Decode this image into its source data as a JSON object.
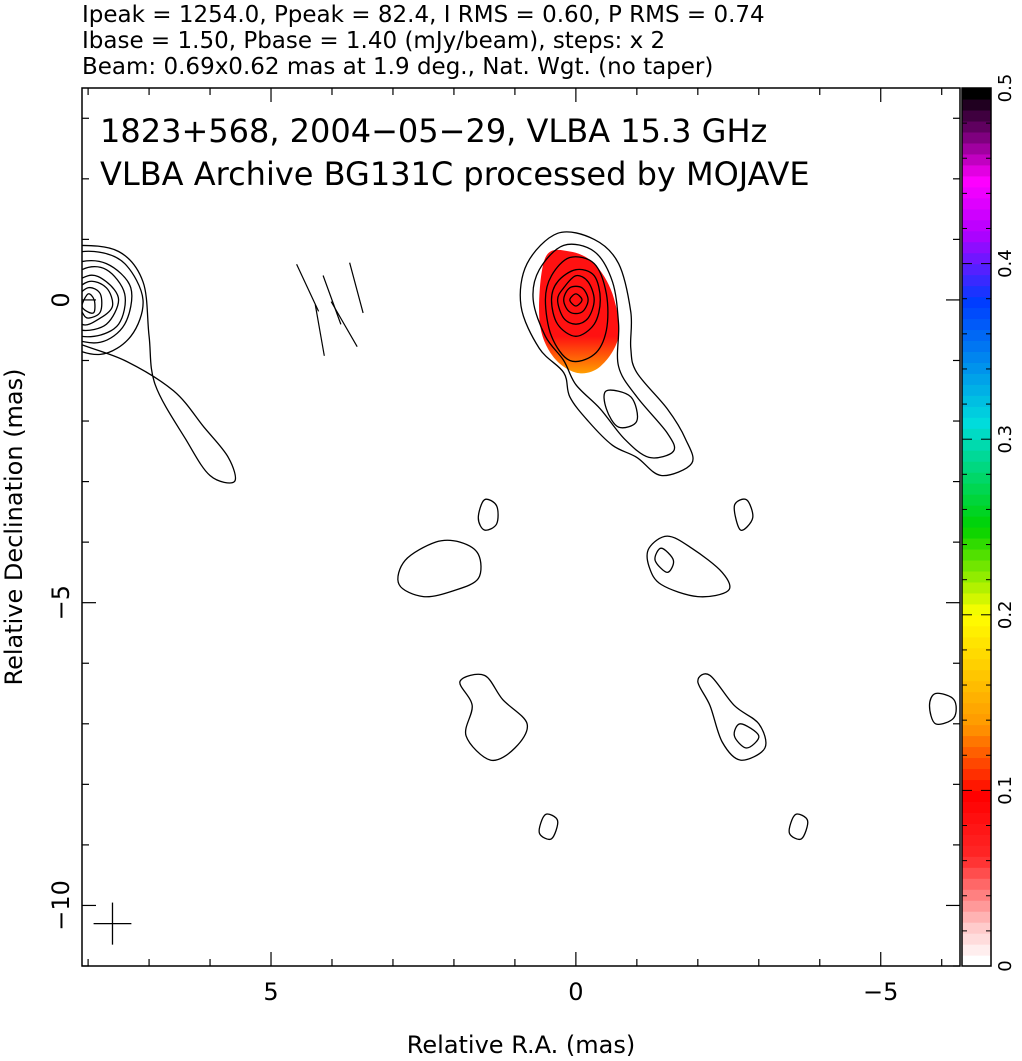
{
  "chart_data": {
    "type": "contour",
    "header": [
      "Ipeak = 1254.0, Ppeak = 82.4, I RMS = 0.60, P RMS = 0.74",
      "Ibase = 1.50, Pbase = 1.40 (mJy/beam), steps: x 2",
      "Beam: 0.69x0.62 mas at 1.9 deg., Nat. Wgt. (no taper)"
    ],
    "annotations": [
      "1823+568, 2004−05−29, VLBA 15.3 GHz",
      "VLBA Archive BG131C processed by MOJAVE"
    ],
    "xlabel": "Relative R.A. (mas)",
    "ylabel": "Relative Declination (mas)",
    "xlim": [
      8.1,
      -6.3
    ],
    "ylim": [
      -11.0,
      3.5
    ],
    "x_ticks": [
      {
        "value": 5,
        "label": "5"
      },
      {
        "value": 0,
        "label": "0"
      },
      {
        "value": -5,
        "label": "−5"
      }
    ],
    "y_ticks": [
      {
        "value": 0,
        "label": "0"
      },
      {
        "value": -5,
        "label": "−5"
      },
      {
        "value": -10,
        "label": "−10"
      }
    ],
    "colorbar": {
      "range": [
        0,
        0.5
      ],
      "ticks": [
        {
          "value": 0,
          "label": "0"
        },
        {
          "value": 0.1,
          "label": "0.1"
        },
        {
          "value": 0.2,
          "label": "0.2"
        },
        {
          "value": 0.3,
          "label": "0.3"
        },
        {
          "value": 0.4,
          "label": "0.4"
        },
        {
          "value": 0.5,
          "label": "0.5"
        }
      ]
    },
    "beam": {
      "major_mas": 0.69,
      "minor_mas": 0.62,
      "pa_deg": 1.9,
      "center": [
        7.6,
        -10.3
      ]
    },
    "panels": [
      {
        "name": "total-intensity-with-evpa",
        "offset_x": 4.0,
        "contours": [
          [
            [
              1.6,
              -3.0
            ],
            [
              1.7,
              -2.6
            ],
            [
              2.1,
              -2.1
            ],
            [
              2.6,
              -1.5
            ],
            [
              3.4,
              -1.0
            ],
            [
              4.4,
              -0.6
            ],
            [
              5.0,
              0.0
            ],
            [
              4.8,
              0.8
            ],
            [
              4.2,
              0.9
            ],
            [
              3.5,
              0.8
            ],
            [
              3.1,
              0.3
            ],
            [
              3.0,
              -0.6
            ],
            [
              2.9,
              -1.4
            ],
            [
              2.4,
              -2.3
            ],
            [
              2.0,
              -2.9
            ]
          ],
          [
            [
              4.8,
              0.3
            ],
            [
              4.4,
              0.7
            ],
            [
              3.9,
              0.8
            ],
            [
              3.4,
              0.6
            ],
            [
              3.1,
              0.0
            ],
            [
              3.3,
              -0.6
            ],
            [
              3.8,
              -0.9
            ],
            [
              4.4,
              -0.7
            ],
            [
              4.7,
              -0.2
            ]
          ],
          [
            [
              4.6,
              0.2
            ],
            [
              4.2,
              0.6
            ],
            [
              3.7,
              0.6
            ],
            [
              3.3,
              0.2
            ],
            [
              3.4,
              -0.4
            ],
            [
              3.8,
              -0.7
            ],
            [
              4.3,
              -0.6
            ],
            [
              4.6,
              -0.2
            ]
          ],
          [
            [
              4.5,
              0.1
            ],
            [
              4.1,
              0.5
            ],
            [
              3.7,
              0.5
            ],
            [
              3.4,
              0.1
            ],
            [
              3.5,
              -0.4
            ],
            [
              3.9,
              -0.6
            ],
            [
              4.3,
              -0.5
            ]
          ],
          [
            [
              4.4,
              0.1
            ],
            [
              4.0,
              0.4
            ],
            [
              3.7,
              0.3
            ],
            [
              3.5,
              0.0
            ],
            [
              3.7,
              -0.4
            ],
            [
              4.1,
              -0.5
            ],
            [
              4.3,
              -0.3
            ]
          ],
          [
            [
              4.3,
              0.0
            ],
            [
              4.0,
              0.3
            ],
            [
              3.7,
              0.2
            ],
            [
              3.6,
              -0.1
            ],
            [
              3.8,
              -0.3
            ],
            [
              4.1,
              -0.4
            ]
          ],
          [
            [
              4.2,
              0.0
            ],
            [
              4.0,
              0.2
            ],
            [
              3.8,
              0.1
            ],
            [
              3.8,
              -0.2
            ],
            [
              4.0,
              -0.3
            ],
            [
              4.1,
              -0.2
            ]
          ],
          [
            [
              4.1,
              -0.1
            ],
            [
              4.0,
              0.1
            ],
            [
              3.9,
              0.0
            ],
            [
              3.9,
              -0.2
            ],
            [
              4.0,
              -0.2
            ]
          ]
        ],
        "evpa_vectors": [
          {
            "x": 4.0,
            "y": 0.0,
            "angle": 20
          },
          {
            "x": 4.4,
            "y": 0.2,
            "angle": 25
          },
          {
            "x": 3.6,
            "y": 0.2,
            "angle": 15
          },
          {
            "x": 4.2,
            "y": -0.5,
            "angle": 10
          },
          {
            "x": 3.8,
            "y": -0.4,
            "angle": 30
          }
        ]
      },
      {
        "name": "polarization-fraction-map",
        "offset_x": 0.0,
        "pol_region": [
          [
            0.5,
            0.7
          ],
          [
            0.1,
            0.8
          ],
          [
            -0.3,
            0.6
          ],
          [
            -0.6,
            0.1
          ],
          [
            -0.7,
            -0.6
          ],
          [
            -0.4,
            -1.1
          ],
          [
            0.0,
            -1.2
          ],
          [
            0.4,
            -0.9
          ],
          [
            0.6,
            -0.3
          ]
        ],
        "pol_fraction": [
          0.08,
          0.14
        ],
        "contours": [
          [
            [
              0.9,
              -0.1
            ],
            [
              0.8,
              0.6
            ],
            [
              0.3,
              1.1
            ],
            [
              -0.3,
              1.0
            ],
            [
              -0.7,
              0.6
            ],
            [
              -0.9,
              -0.2
            ],
            [
              -0.9,
              -0.8
            ],
            [
              -1.0,
              -1.2
            ],
            [
              -1.5,
              -1.8
            ],
            [
              -1.8,
              -2.3
            ],
            [
              -1.9,
              -2.7
            ],
            [
              -1.4,
              -2.9
            ],
            [
              -1.0,
              -2.6
            ],
            [
              -0.6,
              -2.4
            ],
            [
              -0.2,
              -2.0
            ],
            [
              0.1,
              -1.6
            ],
            [
              0.2,
              -1.2
            ],
            [
              0.6,
              -0.8
            ]
          ],
          [
            [
              0.7,
              0.0
            ],
            [
              0.6,
              0.5
            ],
            [
              0.2,
              0.9
            ],
            [
              -0.3,
              0.8
            ],
            [
              -0.6,
              0.3
            ],
            [
              -0.7,
              -0.4
            ],
            [
              -0.7,
              -1.1
            ],
            [
              -1.0,
              -1.6
            ],
            [
              -1.5,
              -2.2
            ],
            [
              -1.6,
              -2.5
            ],
            [
              -1.2,
              -2.6
            ],
            [
              -0.8,
              -2.3
            ],
            [
              -0.4,
              -1.8
            ],
            [
              0.0,
              -1.4
            ],
            [
              0.2,
              -1.0
            ],
            [
              0.5,
              -0.6
            ]
          ],
          [
            [
              0.5,
              0.0
            ],
            [
              0.4,
              0.4
            ],
            [
              0.1,
              0.7
            ],
            [
              -0.3,
              0.6
            ],
            [
              -0.5,
              0.1
            ],
            [
              -0.5,
              -0.5
            ],
            [
              -0.3,
              -0.9
            ],
            [
              0.1,
              -1.0
            ],
            [
              0.4,
              -0.6
            ]
          ],
          [
            [
              0.4,
              0.0
            ],
            [
              0.3,
              0.3
            ],
            [
              0.0,
              0.5
            ],
            [
              -0.3,
              0.4
            ],
            [
              -0.4,
              0.0
            ],
            [
              -0.3,
              -0.4
            ],
            [
              0.0,
              -0.6
            ],
            [
              0.3,
              -0.4
            ]
          ],
          [
            [
              0.3,
              0.0
            ],
            [
              0.2,
              0.2
            ],
            [
              0.0,
              0.4
            ],
            [
              -0.2,
              0.3
            ],
            [
              -0.3,
              0.0
            ],
            [
              -0.2,
              -0.3
            ],
            [
              0.0,
              -0.4
            ],
            [
              0.2,
              -0.3
            ]
          ],
          [
            [
              0.2,
              0.0
            ],
            [
              0.1,
              0.2
            ],
            [
              -0.1,
              0.2
            ],
            [
              -0.2,
              0.0
            ],
            [
              -0.1,
              -0.2
            ],
            [
              0.1,
              -0.2
            ]
          ],
          [
            [
              0.1,
              0.0
            ],
            [
              0.0,
              0.1
            ],
            [
              -0.1,
              0.0
            ],
            [
              0.0,
              -0.1
            ]
          ],
          [
            [
              -0.5,
              -1.5
            ],
            [
              -0.9,
              -1.6
            ],
            [
              -1.0,
              -2.0
            ],
            [
              -0.7,
              -2.1
            ],
            [
              -0.5,
              -1.8
            ]
          ]
        ]
      }
    ],
    "blobs": [
      [
        [
          1.6,
          -4.2
        ],
        [
          1.9,
          -4.0
        ],
        [
          2.3,
          -4.0
        ],
        [
          2.8,
          -4.3
        ],
        [
          2.9,
          -4.7
        ],
        [
          2.5,
          -4.9
        ],
        [
          2.0,
          -4.8
        ],
        [
          1.6,
          -4.6
        ]
      ],
      [
        [
          1.3,
          -3.4
        ],
        [
          1.5,
          -3.3
        ],
        [
          1.6,
          -3.6
        ],
        [
          1.5,
          -3.8
        ],
        [
          1.3,
          -3.7
        ]
      ],
      [
        [
          -1.2,
          -4.1
        ],
        [
          -1.5,
          -3.9
        ],
        [
          -1.9,
          -4.1
        ],
        [
          -2.4,
          -4.5
        ],
        [
          -2.5,
          -4.8
        ],
        [
          -2.0,
          -4.9
        ],
        [
          -1.4,
          -4.7
        ],
        [
          -1.2,
          -4.4
        ]
      ],
      [
        [
          -1.3,
          -4.3
        ],
        [
          -1.4,
          -4.1
        ],
        [
          -1.6,
          -4.3
        ],
        [
          -1.5,
          -4.5
        ]
      ],
      [
        [
          -2.6,
          -3.4
        ],
        [
          -2.8,
          -3.3
        ],
        [
          -2.9,
          -3.6
        ],
        [
          -2.7,
          -3.8
        ]
      ],
      [
        [
          1.9,
          -6.3
        ],
        [
          1.7,
          -6.7
        ],
        [
          1.8,
          -7.2
        ],
        [
          1.4,
          -7.6
        ],
        [
          1.0,
          -7.4
        ],
        [
          0.8,
          -7.0
        ],
        [
          1.2,
          -6.6
        ],
        [
          1.5,
          -6.2
        ]
      ],
      [
        [
          -2.0,
          -6.3
        ],
        [
          -2.2,
          -6.7
        ],
        [
          -2.4,
          -7.3
        ],
        [
          -2.7,
          -7.6
        ],
        [
          -3.1,
          -7.4
        ],
        [
          -3.0,
          -7.0
        ],
        [
          -2.6,
          -6.7
        ],
        [
          -2.2,
          -6.2
        ]
      ],
      [
        [
          -2.6,
          -7.2
        ],
        [
          -2.7,
          -7.0
        ],
        [
          -3.0,
          -7.2
        ],
        [
          -2.8,
          -7.4
        ]
      ],
      [
        [
          0.5,
          -8.5
        ],
        [
          0.3,
          -8.6
        ],
        [
          0.4,
          -8.9
        ],
        [
          0.6,
          -8.8
        ]
      ],
      [
        [
          -3.6,
          -8.5
        ],
        [
          -3.8,
          -8.6
        ],
        [
          -3.7,
          -8.9
        ],
        [
          -3.5,
          -8.8
        ]
      ],
      [
        [
          -5.9,
          -6.5
        ],
        [
          -6.2,
          -6.6
        ],
        [
          -6.2,
          -6.9
        ],
        [
          -5.9,
          -7.0
        ],
        [
          -5.8,
          -6.7
        ]
      ]
    ]
  }
}
